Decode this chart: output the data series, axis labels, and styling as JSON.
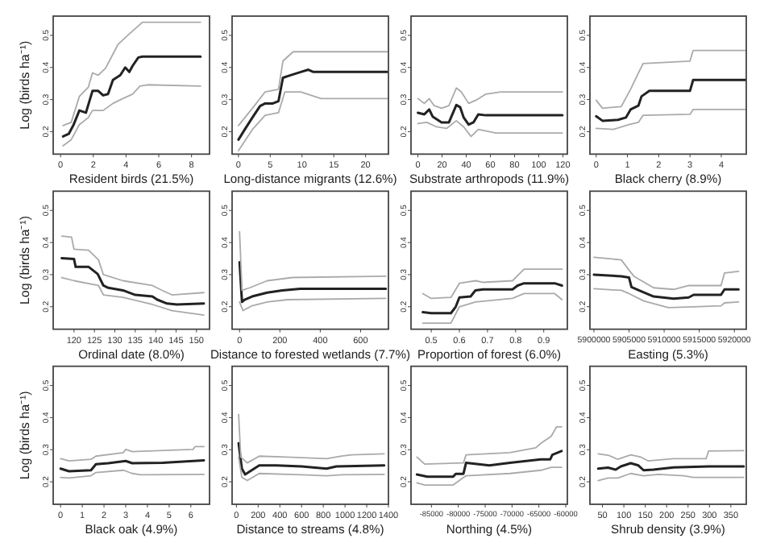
{
  "chart_data": [
    {
      "type": "line",
      "xlabel": "Resident birds (21.5%)",
      "ylabel": "Log (birds ha⁻¹)",
      "xlim": [
        -0.45,
        9.1
      ],
      "xticks": [
        0,
        2,
        4,
        6,
        8
      ],
      "ylim": [
        0.13,
        0.56
      ],
      "yticks": [
        0.2,
        0.3,
        0.4,
        0.5
      ],
      "series": [
        {
          "color": "#222222",
          "x": [
            0.15,
            0.5,
            0.8,
            1.15,
            1.55,
            1.95,
            2.3,
            2.6,
            2.9,
            3.2,
            3.65,
            3.95,
            4.2,
            4.4,
            4.75,
            5.0,
            8.55
          ],
          "values": [
            0.185,
            0.193,
            0.222,
            0.266,
            0.259,
            0.327,
            0.327,
            0.313,
            0.317,
            0.361,
            0.376,
            0.4,
            0.386,
            0.405,
            0.431,
            0.434,
            0.434
          ]
        },
        {
          "color": "#aaaaaa",
          "x": [
            0.15,
            0.65,
            1.15,
            1.7,
            1.95,
            2.3,
            2.75,
            3.05,
            3.5,
            4.1,
            5.0,
            8.55
          ],
          "values": [
            0.219,
            0.229,
            0.31,
            0.339,
            0.383,
            0.376,
            0.398,
            0.427,
            0.471,
            0.5,
            0.541,
            0.541
          ]
        },
        {
          "color": "#aaaaaa",
          "x": [
            0.15,
            0.65,
            1.15,
            1.7,
            1.95,
            2.6,
            3.2,
            3.8,
            4.4,
            4.85,
            5.3,
            8.55
          ],
          "values": [
            0.156,
            0.175,
            0.222,
            0.244,
            0.266,
            0.266,
            0.288,
            0.303,
            0.317,
            0.342,
            0.346,
            0.342
          ]
        }
      ]
    },
    {
      "type": "line",
      "xlabel": "Long-distance migrants (12.6%)",
      "xlim": [
        -1,
        23.6
      ],
      "xticks": [
        0,
        5,
        10,
        15,
        20
      ],
      "ylim": [
        0.13,
        0.56
      ],
      "yticks": [
        0.2,
        0.3,
        0.4,
        0.5
      ],
      "series": [
        {
          "color": "#222222",
          "x": [
            0,
            1,
            2.2,
            3.4,
            4.2,
            5.4,
            6.3,
            7,
            8.2,
            9.8,
            11,
            11.8,
            23.4
          ],
          "values": [
            0.175,
            0.207,
            0.244,
            0.28,
            0.288,
            0.288,
            0.295,
            0.368,
            0.376,
            0.386,
            0.393,
            0.386,
            0.386
          ]
        },
        {
          "color": "#aaaaaa",
          "x": [
            0,
            2.2,
            4.2,
            6.3,
            7,
            8.6,
            11,
            23.4
          ],
          "values": [
            0.219,
            0.273,
            0.324,
            0.332,
            0.42,
            0.449,
            0.449,
            0.449
          ]
        },
        {
          "color": "#aaaaaa",
          "x": [
            0,
            2.2,
            4.2,
            6.3,
            7.3,
            9.8,
            13,
            14,
            23.4
          ],
          "values": [
            0.141,
            0.207,
            0.251,
            0.259,
            0.324,
            0.324,
            0.303,
            0.303,
            0.303
          ]
        }
      ]
    },
    {
      "type": "line",
      "xlabel": "Substrate arthropods (11.9%)",
      "xlim": [
        -5.7,
        123.7
      ],
      "xticks": [
        0,
        20,
        40,
        60,
        80,
        100,
        120
      ],
      "ylim": [
        0.13,
        0.56
      ],
      "yticks": [
        0.2,
        0.3,
        0.4,
        0.5
      ],
      "series": [
        {
          "color": "#222222",
          "x": [
            0,
            5.3,
            9.4,
            12.2,
            19.6,
            25.7,
            31.8,
            35,
            37.9,
            42,
            46,
            50,
            56.3,
            119.6
          ],
          "values": [
            0.259,
            0.254,
            0.269,
            0.247,
            0.229,
            0.229,
            0.283,
            0.276,
            0.244,
            0.222,
            0.229,
            0.254,
            0.251,
            0.251
          ]
        },
        {
          "color": "#aaaaaa",
          "x": [
            0,
            5.3,
            9.4,
            13.5,
            19.6,
            25.7,
            31.8,
            35.9,
            42,
            48,
            56.3,
            68.6,
            119.6
          ],
          "values": [
            0.303,
            0.288,
            0.303,
            0.281,
            0.273,
            0.281,
            0.336,
            0.324,
            0.288,
            0.298,
            0.317,
            0.324,
            0.324
          ]
        },
        {
          "color": "#aaaaaa",
          "x": [
            0,
            7.3,
            15.5,
            23.7,
            31.8,
            37.9,
            44,
            50,
            64.5,
            119.6
          ],
          "values": [
            0.225,
            0.229,
            0.215,
            0.21,
            0.234,
            0.215,
            0.185,
            0.207,
            0.196,
            0.196
          ]
        }
      ]
    },
    {
      "type": "line",
      "xlabel": "Black cherry (8.9%)",
      "xlim": [
        -0.2,
        4.8
      ],
      "xticks": [
        0,
        1,
        2,
        3,
        4
      ],
      "ylim": [
        0.13,
        0.56
      ],
      "yticks": [
        0.2,
        0.3,
        0.4,
        0.5
      ],
      "series": [
        {
          "color": "#222222",
          "x": [
            0,
            0.2,
            0.7,
            0.95,
            1.1,
            1.35,
            1.45,
            1.7,
            3,
            3.1,
            4.8
          ],
          "values": [
            0.248,
            0.234,
            0.237,
            0.244,
            0.269,
            0.281,
            0.31,
            0.327,
            0.327,
            0.361,
            0.361
          ]
        },
        {
          "color": "#aaaaaa",
          "x": [
            0,
            0.2,
            0.8,
            1.1,
            1.35,
            1.5,
            3,
            3.1,
            4.8
          ],
          "values": [
            0.298,
            0.273,
            0.278,
            0.332,
            0.383,
            0.412,
            0.42,
            0.453,
            0.453
          ]
        },
        {
          "color": "#aaaaaa",
          "x": [
            0,
            0.55,
            1.05,
            1.35,
            1.5,
            3,
            3.1,
            4.8
          ],
          "values": [
            0.21,
            0.207,
            0.222,
            0.229,
            0.251,
            0.254,
            0.269,
            0.269
          ]
        }
      ]
    },
    {
      "type": "line",
      "xlabel": "Ordinal date (8.0%)",
      "ylabel": "Log (birds ha⁻¹)",
      "xlim": [
        114.9,
        153.2
      ],
      "xticks": [
        120,
        125,
        130,
        135,
        140,
        145,
        150
      ],
      "ylim": [
        0.13,
        0.56
      ],
      "yticks": [
        0.2,
        0.3,
        0.4,
        0.5
      ],
      "series": [
        {
          "color": "#222222",
          "x": [
            117,
            120,
            120.4,
            123.6,
            125.8,
            127.2,
            128.4,
            132,
            135,
            139.2,
            140.4,
            142.8,
            145.2,
            151.8
          ],
          "values": [
            0.351,
            0.349,
            0.324,
            0.324,
            0.302,
            0.266,
            0.259,
            0.251,
            0.237,
            0.232,
            0.222,
            0.21,
            0.207,
            0.21
          ]
        },
        {
          "color": "#aaaaaa",
          "x": [
            117,
            119.4,
            120,
            123.6,
            126,
            127.2,
            132,
            139.2,
            141.6,
            144,
            151.8
          ],
          "values": [
            0.42,
            0.417,
            0.379,
            0.376,
            0.346,
            0.3,
            0.281,
            0.266,
            0.251,
            0.237,
            0.244
          ]
        },
        {
          "color": "#aaaaaa",
          "x": [
            117,
            120,
            126,
            127.2,
            132,
            139.2,
            144,
            151.8
          ],
          "values": [
            0.291,
            0.281,
            0.266,
            0.237,
            0.229,
            0.207,
            0.188,
            0.174
          ]
        }
      ]
    },
    {
      "type": "line",
      "xlabel": "Distance to forested wetlands (7.7%)",
      "xlim": [
        -37,
        738
      ],
      "xticks": [
        0,
        200,
        400,
        600
      ],
      "ylim": [
        0.13,
        0.56
      ],
      "yticks": [
        0.2,
        0.3,
        0.4,
        0.5
      ],
      "series": [
        {
          "color": "#222222",
          "x": [
            0,
            12,
            25,
            62,
            137,
            212,
            300,
            725
          ],
          "values": [
            0.339,
            0.215,
            0.222,
            0.232,
            0.244,
            0.251,
            0.256,
            0.256
          ]
        },
        {
          "color": "#aaaaaa",
          "x": [
            0,
            12,
            50,
            137,
            262,
            725
          ],
          "values": [
            0.434,
            0.251,
            0.259,
            0.281,
            0.291,
            0.295
          ]
        },
        {
          "color": "#aaaaaa",
          "x": [
            0,
            17,
            62,
            137,
            237,
            725
          ],
          "values": [
            0.215,
            0.188,
            0.203,
            0.215,
            0.222,
            0.226
          ]
        }
      ]
    },
    {
      "type": "line",
      "xlabel": "Proportion of forest (6.0%)",
      "xlim": [
        0.428,
        0.984
      ],
      "xticks": [
        0.5,
        0.6,
        0.7,
        0.8,
        0.9
      ],
      "ylim": [
        0.13,
        0.56
      ],
      "yticks": [
        0.2,
        0.3,
        0.4,
        0.5
      ],
      "series": [
        {
          "color": "#222222",
          "x": [
            0.47,
            0.5,
            0.57,
            0.587,
            0.6,
            0.64,
            0.657,
            0.684,
            0.789,
            0.807,
            0.83,
            0.939,
            0.965
          ],
          "values": [
            0.183,
            0.18,
            0.18,
            0.2,
            0.229,
            0.232,
            0.251,
            0.254,
            0.254,
            0.266,
            0.273,
            0.273,
            0.266
          ]
        },
        {
          "color": "#aaaaaa",
          "x": [
            0.47,
            0.5,
            0.57,
            0.6,
            0.657,
            0.684,
            0.789,
            0.83,
            0.965
          ],
          "values": [
            0.241,
            0.226,
            0.229,
            0.273,
            0.281,
            0.276,
            0.281,
            0.317,
            0.317
          ]
        },
        {
          "color": "#aaaaaa",
          "x": [
            0.47,
            0.57,
            0.6,
            0.657,
            0.789,
            0.83,
            0.939,
            0.965
          ],
          "values": [
            0.149,
            0.149,
            0.2,
            0.215,
            0.226,
            0.241,
            0.241,
            0.222
          ]
        }
      ]
    },
    {
      "type": "line",
      "xlabel": "Easting (5.3%)",
      "xlim": [
        5899430,
        5921700
      ],
      "xticks": [
        5900000,
        5905000,
        5910000,
        5915000,
        5920000
      ],
      "ylim": [
        0.13,
        0.56
      ],
      "yticks": [
        0.2,
        0.3,
        0.4,
        0.5
      ],
      "series": [
        {
          "color": "#222222",
          "x": [
            5900000,
            5903900,
            5905000,
            5905350,
            5906400,
            5908500,
            5911350,
            5913500,
            5914200,
            5918100,
            5918600,
            5920600
          ],
          "values": [
            0.3,
            0.295,
            0.291,
            0.261,
            0.251,
            0.232,
            0.225,
            0.229,
            0.237,
            0.237,
            0.254,
            0.254
          ]
        },
        {
          "color": "#aaaaaa",
          "x": [
            5900000,
            5903900,
            5905000,
            5905700,
            5908500,
            5911350,
            5913500,
            5918100,
            5918600,
            5920600
          ],
          "values": [
            0.354,
            0.346,
            0.314,
            0.295,
            0.259,
            0.254,
            0.266,
            0.266,
            0.305,
            0.31
          ]
        },
        {
          "color": "#aaaaaa",
          "x": [
            5900000,
            5903900,
            5905000,
            5907100,
            5910600,
            5914200,
            5918100,
            5918600,
            5920600
          ],
          "values": [
            0.256,
            0.251,
            0.241,
            0.218,
            0.197,
            0.2,
            0.203,
            0.212,
            0.215
          ]
        }
      ]
    },
    {
      "type": "line",
      "xlabel": "Black oak (4.9%)",
      "ylabel": "Log (birds ha⁻¹)",
      "xlim": [
        -0.34,
        6.86
      ],
      "xticks": [
        0,
        1,
        2,
        3,
        4,
        5,
        6
      ],
      "ylim": [
        0.13,
        0.56
      ],
      "yticks": [
        0.2,
        0.3,
        0.4,
        0.5
      ],
      "series": [
        {
          "color": "#222222",
          "x": [
            0,
            0.39,
            1.4,
            1.63,
            2.2,
            3,
            3.3,
            4.7,
            6.6
          ],
          "values": [
            0.241,
            0.233,
            0.236,
            0.255,
            0.258,
            0.265,
            0.258,
            0.259,
            0.267
          ]
        },
        {
          "color": "#aaaaaa",
          "x": [
            0,
            0.39,
            1.4,
            1.63,
            2.9,
            3,
            3.3,
            6.1,
            6.2,
            6.6
          ],
          "values": [
            0.272,
            0.265,
            0.27,
            0.28,
            0.291,
            0.301,
            0.294,
            0.301,
            0.31,
            0.31
          ]
        },
        {
          "color": "#aaaaaa",
          "x": [
            0,
            0.39,
            1.4,
            1.63,
            2.9,
            3.3,
            3.7,
            6.6
          ],
          "values": [
            0.214,
            0.212,
            0.219,
            0.229,
            0.236,
            0.226,
            0.222,
            0.223
          ]
        }
      ]
    },
    {
      "type": "line",
      "xlabel": "Distance to streams (4.8%)",
      "xlim": [
        -40,
        1400
      ],
      "xticks": [
        0,
        200,
        400,
        600,
        800,
        1000,
        1200,
        1400
      ],
      "ylim": [
        0.13,
        0.56
      ],
      "yticks": [
        0.2,
        0.3,
        0.4,
        0.5
      ],
      "series": [
        {
          "color": "#222222",
          "x": [
            20,
            50,
            80,
            140,
            210,
            370,
            600,
            830,
            920,
            1360
          ],
          "values": [
            0.32,
            0.241,
            0.223,
            0.236,
            0.251,
            0.251,
            0.248,
            0.241,
            0.248,
            0.251
          ]
        },
        {
          "color": "#aaaaaa",
          "x": [
            20,
            40,
            100,
            210,
            460,
            830,
            970,
            1060,
            1360
          ],
          "values": [
            0.41,
            0.277,
            0.259,
            0.28,
            0.277,
            0.272,
            0.28,
            0.284,
            0.287
          ]
        },
        {
          "color": "#aaaaaa",
          "x": [
            20,
            50,
            100,
            210,
            600,
            830,
            970,
            1360
          ],
          "values": [
            0.277,
            0.214,
            0.204,
            0.226,
            0.222,
            0.219,
            0.222,
            0.223
          ]
        }
      ]
    },
    {
      "type": "line",
      "xlabel": "Northing (4.5%)",
      "xlim": [
        -88800,
        -59700
      ],
      "xticks": [
        -85000,
        -80000,
        -75000,
        -70000,
        -65000,
        -60000
      ],
      "ylim": [
        0.13,
        0.56
      ],
      "yticks": [
        0.2,
        0.3,
        0.4,
        0.5
      ],
      "series": [
        {
          "color": "#222222",
          "x": [
            -87700,
            -85770,
            -80960,
            -80480,
            -79040,
            -78560,
            -74230,
            -70380,
            -64620,
            -62880,
            -62500,
            -60770
          ],
          "values": [
            0.223,
            0.216,
            0.216,
            0.225,
            0.225,
            0.259,
            0.251,
            0.259,
            0.27,
            0.27,
            0.284,
            0.296
          ]
        },
        {
          "color": "#aaaaaa",
          "x": [
            -87700,
            -86250,
            -79040,
            -78560,
            -70380,
            -65580,
            -64620,
            -62690,
            -61730,
            -60770
          ],
          "values": [
            0.277,
            0.255,
            0.259,
            0.284,
            0.291,
            0.306,
            0.32,
            0.342,
            0.371,
            0.371
          ]
        },
        {
          "color": "#aaaaaa",
          "x": [
            -87700,
            -86250,
            -80960,
            -78560,
            -70380,
            -64620,
            -62690,
            -60770
          ],
          "values": [
            0.197,
            0.19,
            0.19,
            0.219,
            0.226,
            0.236,
            0.245,
            0.245
          ]
        }
      ]
    },
    {
      "type": "line",
      "xlabel": "Shrub density (3.9%)",
      "xlim": [
        20.7,
        386
      ],
      "xticks": [
        50,
        100,
        150,
        200,
        250,
        300,
        350
      ],
      "ylim": [
        0.13,
        0.56
      ],
      "yticks": [
        0.2,
        0.3,
        0.4,
        0.5
      ],
      "series": [
        {
          "color": "#222222",
          "x": [
            40,
            63,
            81,
            93,
            116,
            134,
            146,
            169,
            216,
            298,
            380
          ],
          "values": [
            0.241,
            0.244,
            0.238,
            0.248,
            0.258,
            0.251,
            0.236,
            0.238,
            0.245,
            0.248,
            0.248
          ]
        },
        {
          "color": "#aaaaaa",
          "x": [
            40,
            63,
            86,
            116,
            140,
            157,
            216,
            292,
            298,
            380
          ],
          "values": [
            0.287,
            0.283,
            0.27,
            0.284,
            0.277,
            0.265,
            0.272,
            0.272,
            0.296,
            0.297
          ]
        },
        {
          "color": "#aaaaaa",
          "x": [
            40,
            63,
            86,
            116,
            146,
            181,
            240,
            263,
            380
          ],
          "values": [
            0.204,
            0.212,
            0.212,
            0.226,
            0.219,
            0.223,
            0.219,
            0.214,
            0.214
          ]
        }
      ]
    }
  ]
}
